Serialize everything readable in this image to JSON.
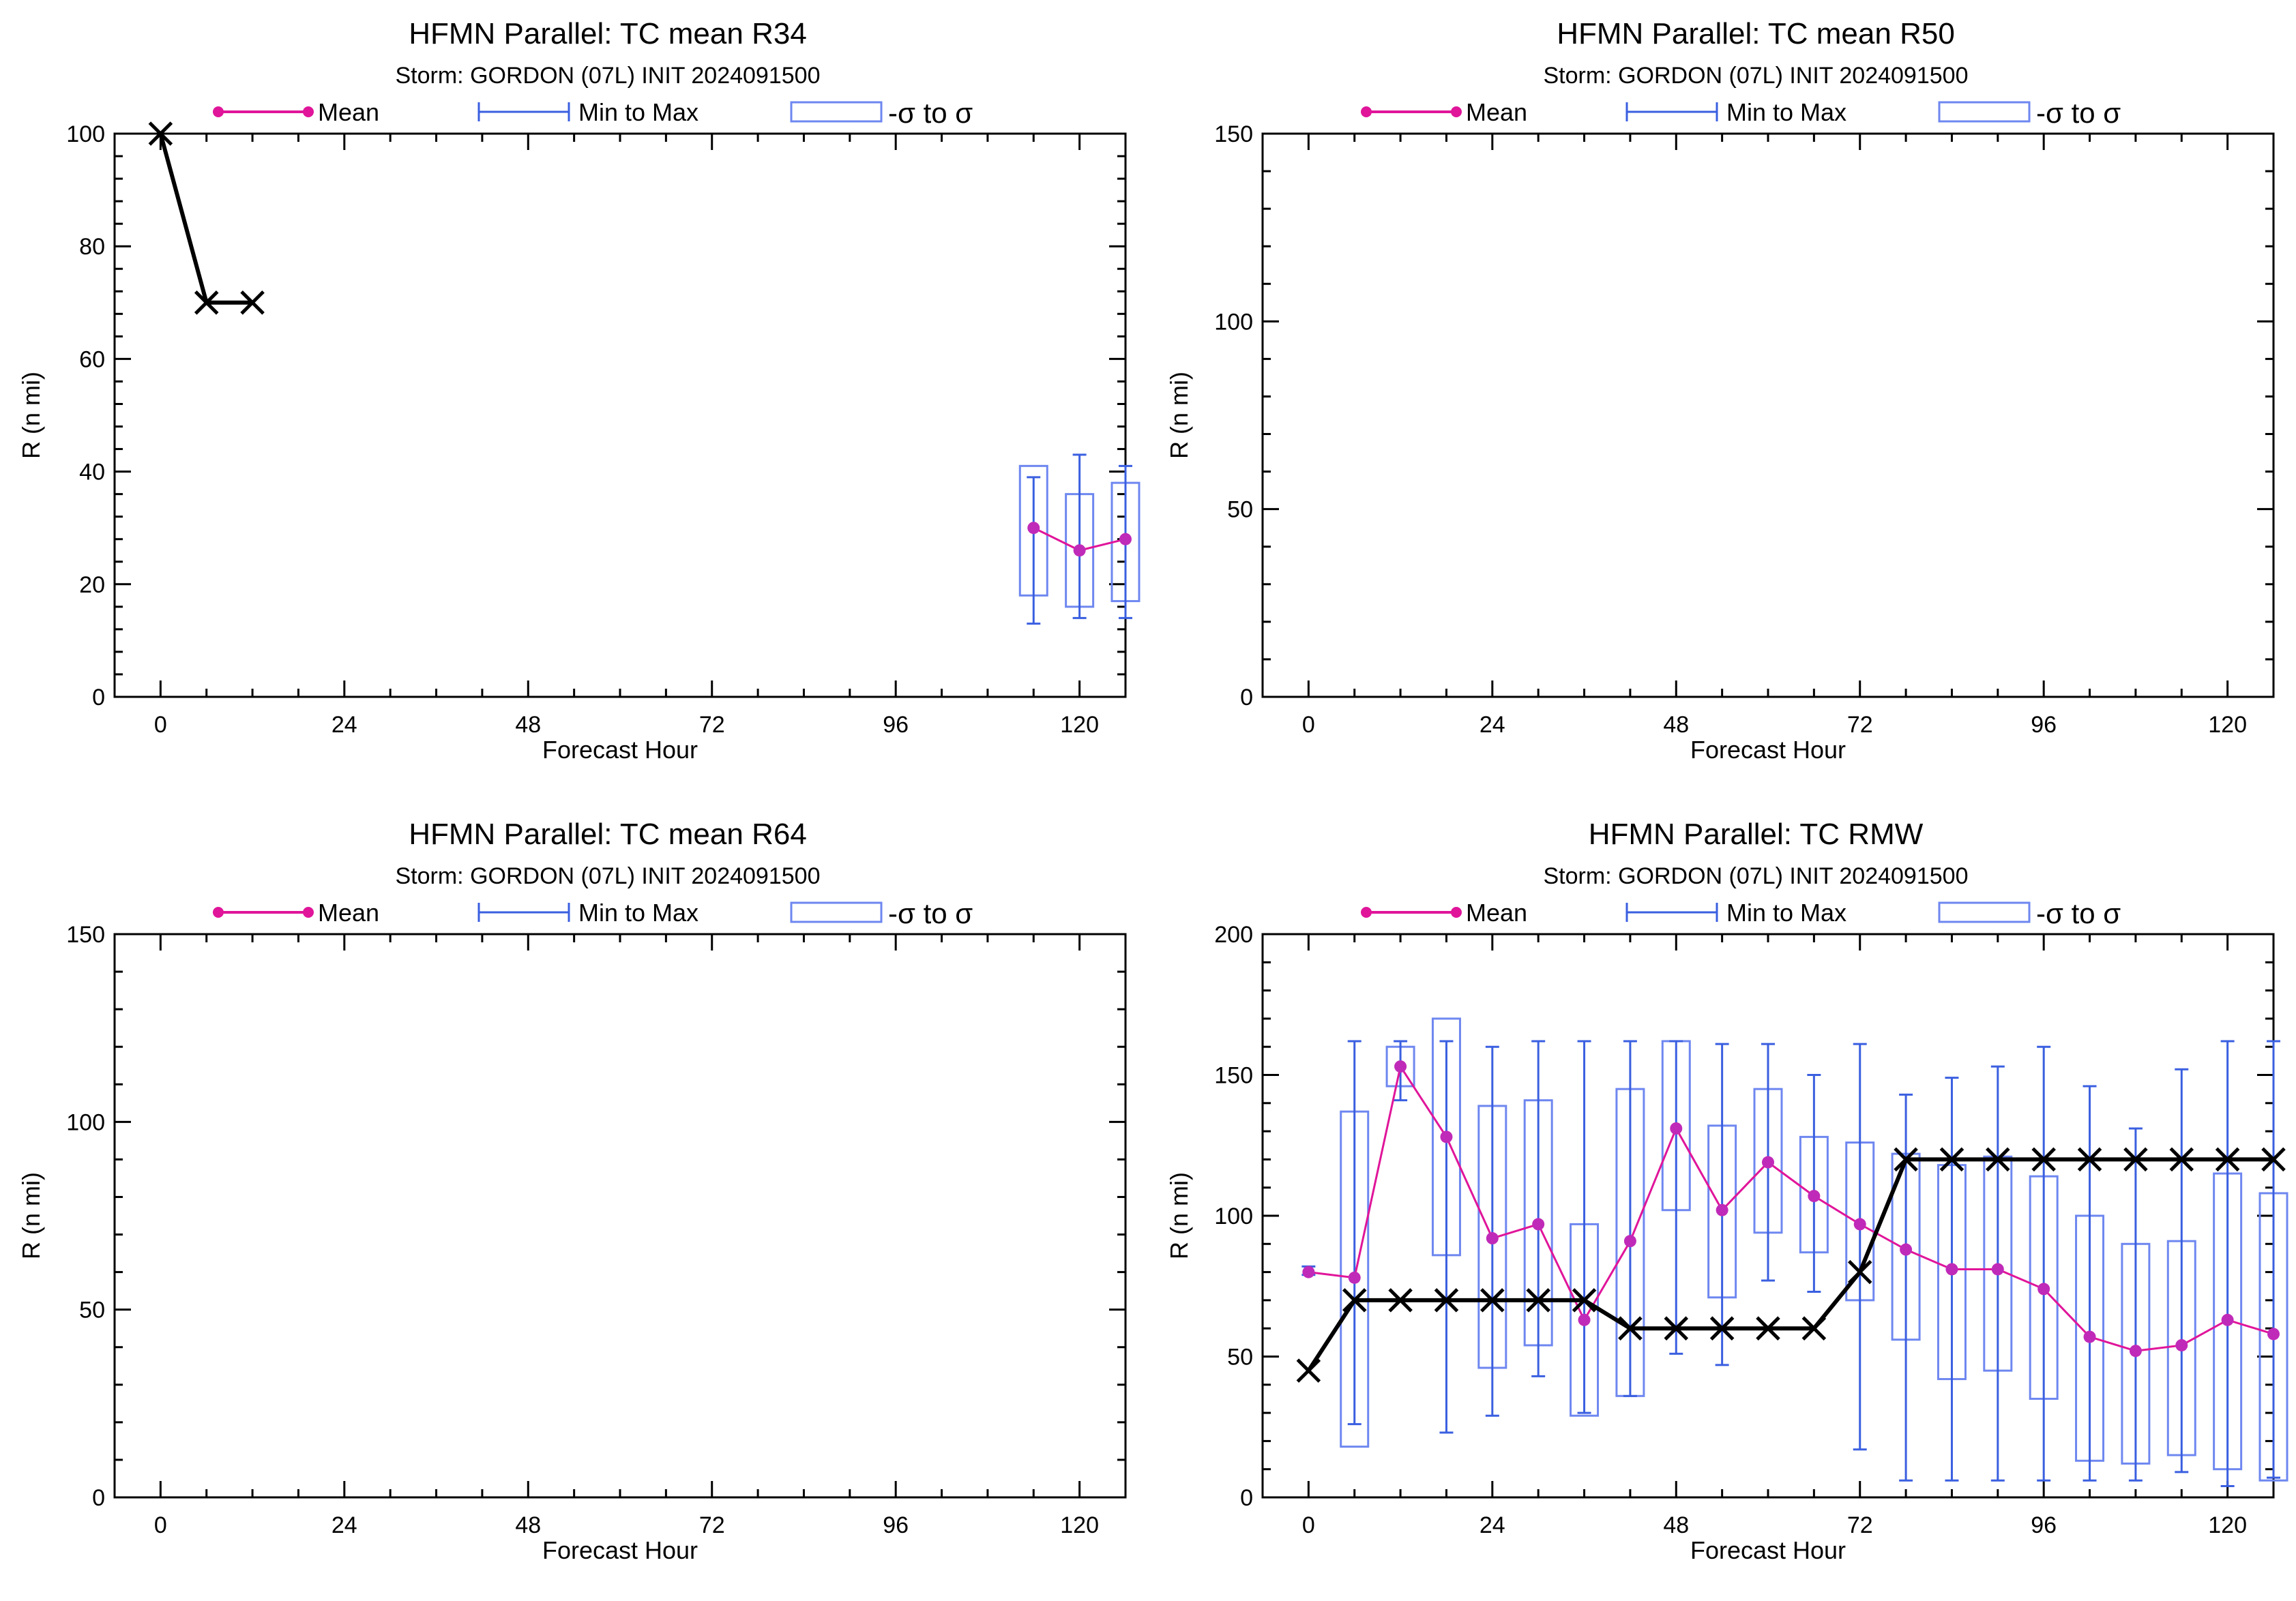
{
  "colors": {
    "mean": "#e0159a",
    "mean_marker": "#c02ab8",
    "minmax": "#3a5fe0",
    "sigma": "#6e87f0",
    "obs": "#000000",
    "axes": "#000000"
  },
  "legend": {
    "mean": "Mean",
    "minmax": "Min to Max",
    "sigma": "-σ to σ"
  },
  "chart_data": [
    {
      "type": "line",
      "title": "HFMN Parallel: TC mean R34",
      "subtitle": "Storm: GORDON (07L) INIT 2024091500",
      "xlabel": "Forecast Hour",
      "ylabel": "R (n mi)",
      "xlim": [
        -6,
        126
      ],
      "ylim": [
        0,
        100
      ],
      "xticks": [
        0,
        24,
        48,
        72,
        96,
        120
      ],
      "yticks": [
        0,
        20,
        40,
        60,
        80,
        100
      ],
      "obs": {
        "x": [
          0,
          6,
          12
        ],
        "y": [
          100,
          70,
          70
        ]
      },
      "mean": {
        "x": [
          114,
          120,
          126
        ],
        "y": [
          30,
          26,
          28
        ]
      },
      "minmax": {
        "x": [
          114,
          120,
          126
        ],
        "min": [
          13,
          14,
          14
        ],
        "max": [
          39,
          43,
          41
        ]
      },
      "sigma": {
        "x": [
          114,
          120,
          126
        ],
        "lo": [
          18,
          16,
          17
        ],
        "hi": [
          41,
          36,
          38
        ]
      }
    },
    {
      "type": "line",
      "title": "HFMN Parallel: TC mean R50",
      "subtitle": "Storm: GORDON (07L) INIT 2024091500",
      "xlabel": "Forecast Hour",
      "ylabel": "R (n mi)",
      "xlim": [
        -6,
        126
      ],
      "ylim": [
        0,
        150
      ],
      "xticks": [
        0,
        24,
        48,
        72,
        96,
        120
      ],
      "yticks": [
        0,
        50,
        100,
        150
      ],
      "obs": {
        "x": [],
        "y": []
      },
      "mean": {
        "x": [],
        "y": []
      },
      "minmax": {
        "x": [],
        "min": [],
        "max": []
      },
      "sigma": {
        "x": [],
        "lo": [],
        "hi": []
      }
    },
    {
      "type": "line",
      "title": "HFMN Parallel: TC mean R64",
      "subtitle": "Storm: GORDON (07L) INIT 2024091500",
      "xlabel": "Forecast Hour",
      "ylabel": "R (n mi)",
      "xlim": [
        -6,
        126
      ],
      "ylim": [
        0,
        150
      ],
      "xticks": [
        0,
        24,
        48,
        72,
        96,
        120
      ],
      "yticks": [
        0,
        50,
        100,
        150
      ],
      "obs": {
        "x": [],
        "y": []
      },
      "mean": {
        "x": [],
        "y": []
      },
      "minmax": {
        "x": [],
        "min": [],
        "max": []
      },
      "sigma": {
        "x": [],
        "lo": [],
        "hi": []
      }
    },
    {
      "type": "line",
      "title": "HFMN Parallel: TC RMW",
      "subtitle": "Storm: GORDON (07L) INIT 2024091500",
      "xlabel": "Forecast Hour",
      "ylabel": "R (n mi)",
      "xlim": [
        -6,
        126
      ],
      "ylim": [
        0,
        200
      ],
      "xticks": [
        0,
        24,
        48,
        72,
        96,
        120
      ],
      "yticks": [
        0,
        50,
        100,
        150,
        200
      ],
      "obs": {
        "x": [
          0,
          6,
          12,
          18,
          24,
          30,
          36,
          42,
          48,
          54,
          60,
          66,
          72,
          78,
          84,
          90,
          96,
          102,
          108,
          114,
          120,
          126
        ],
        "y": [
          45,
          70,
          70,
          70,
          70,
          70,
          70,
          60,
          60,
          60,
          60,
          60,
          80,
          120,
          120,
          120,
          120,
          120,
          120,
          120,
          120,
          120
        ]
      },
      "mean": {
        "x": [
          0,
          6,
          12,
          18,
          24,
          30,
          36,
          42,
          48,
          54,
          60,
          66,
          72,
          78,
          84,
          90,
          96,
          102,
          108,
          114,
          120,
          126
        ],
        "y": [
          80,
          78,
          153,
          128,
          92,
          97,
          63,
          91,
          131,
          102,
          119,
          107,
          97,
          88,
          81,
          81,
          74,
          57,
          52,
          54,
          63,
          58
        ]
      },
      "minmax": {
        "x": [
          0,
          6,
          12,
          18,
          24,
          30,
          36,
          42,
          48,
          54,
          60,
          66,
          72,
          78,
          84,
          90,
          96,
          102,
          108,
          114,
          120,
          126
        ],
        "min": [
          79,
          26,
          141,
          23,
          29,
          43,
          30,
          36,
          51,
          47,
          77,
          73,
          17,
          6,
          6,
          6,
          6,
          6,
          6,
          9,
          4,
          7
        ],
        "max": [
          82,
          162,
          162,
          162,
          160,
          162,
          162,
          162,
          162,
          161,
          161,
          150,
          161,
          143,
          149,
          153,
          160,
          146,
          131,
          152,
          162,
          162
        ]
      },
      "sigma": {
        "x": [
          6,
          12,
          18,
          24,
          30,
          36,
          42,
          48,
          54,
          60,
          66,
          72,
          78,
          84,
          90,
          96,
          102,
          108,
          114,
          120,
          126
        ],
        "lo": [
          18,
          146,
          86,
          46,
          54,
          29,
          36,
          102,
          71,
          94,
          87,
          70,
          56,
          42,
          45,
          35,
          13,
          12,
          15,
          10,
          6
        ],
        "hi": [
          137,
          160,
          170,
          139,
          141,
          97,
          145,
          162,
          132,
          145,
          128,
          126,
          122,
          118,
          121,
          114,
          100,
          90,
          91,
          115,
          108
        ]
      }
    }
  ]
}
